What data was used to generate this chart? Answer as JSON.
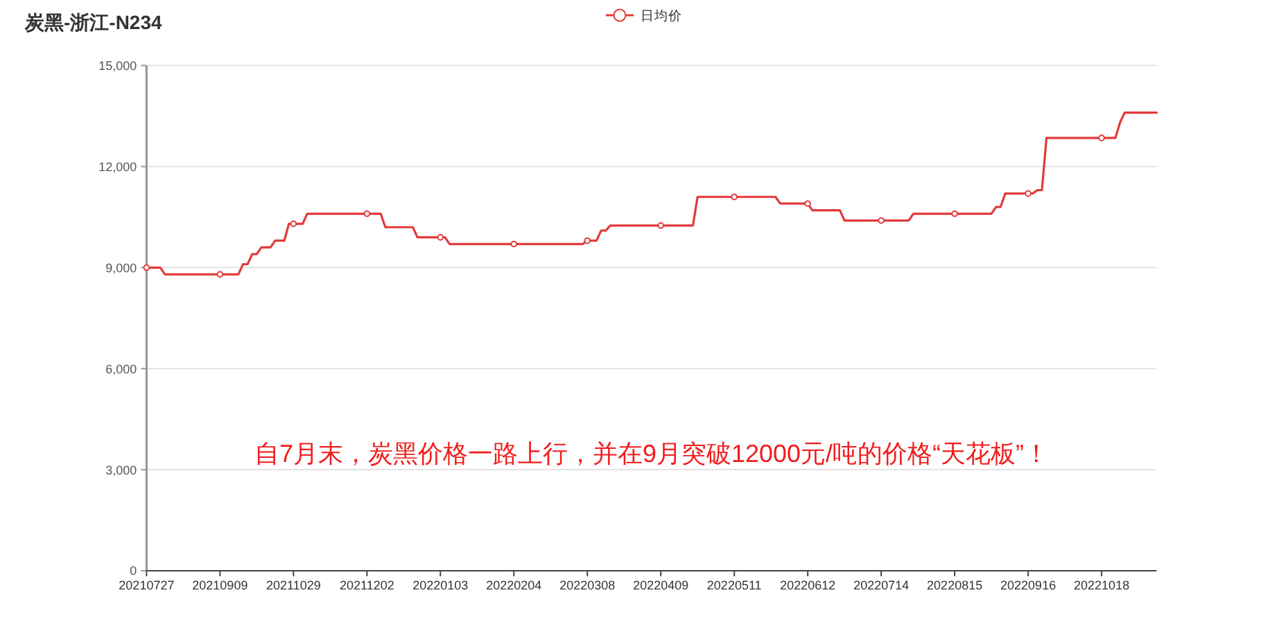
{
  "chart_data": {
    "type": "line",
    "title": "炭黑-浙江-N234",
    "annotations": [
      "自7月末，炭黑价格一路上行，并在9月突破12000元/吨的价格“天花板”！"
    ],
    "categories": [
      "20210727",
      null,
      null,
      null,
      null,
      null,
      null,
      null,
      null,
      null,
      null,
      null,
      null,
      null,
      null,
      null,
      "20210909",
      null,
      null,
      null,
      null,
      null,
      null,
      null,
      null,
      null,
      null,
      null,
      null,
      null,
      null,
      null,
      "20211029",
      null,
      null,
      null,
      null,
      null,
      null,
      null,
      null,
      null,
      null,
      null,
      null,
      null,
      null,
      null,
      "20211202",
      null,
      null,
      null,
      null,
      null,
      null,
      null,
      null,
      null,
      null,
      null,
      null,
      null,
      null,
      null,
      "20220103",
      null,
      null,
      null,
      null,
      null,
      null,
      null,
      null,
      null,
      null,
      null,
      null,
      null,
      null,
      null,
      "20220204",
      null,
      null,
      null,
      null,
      null,
      null,
      null,
      null,
      null,
      null,
      null,
      null,
      null,
      null,
      null,
      "20220308",
      null,
      null,
      null,
      null,
      null,
      null,
      null,
      null,
      null,
      null,
      null,
      null,
      null,
      null,
      null,
      "20220409",
      null,
      null,
      null,
      null,
      null,
      null,
      null,
      null,
      null,
      null,
      null,
      null,
      null,
      null,
      null,
      "20220511",
      null,
      null,
      null,
      null,
      null,
      null,
      null,
      null,
      null,
      null,
      null,
      null,
      null,
      null,
      null,
      "20220612",
      null,
      null,
      null,
      null,
      null,
      null,
      null,
      null,
      null,
      null,
      null,
      null,
      null,
      null,
      null,
      "20220714",
      null,
      null,
      null,
      null,
      null,
      null,
      null,
      null,
      null,
      null,
      null,
      null,
      null,
      null,
      null,
      "20220815",
      null,
      null,
      null,
      null,
      null,
      null,
      null,
      null,
      null,
      null,
      null,
      null,
      null,
      null,
      null,
      "20220916",
      null,
      null,
      null,
      null,
      null,
      null,
      null,
      null,
      null,
      null,
      null,
      null,
      null,
      null,
      null,
      "20221018",
      null,
      null,
      null,
      null,
      null,
      null,
      null,
      null,
      null,
      null,
      null,
      null
    ],
    "series": [
      {
        "name": "日均价",
        "color": "#e23a3a",
        "values": [
          9000,
          9000,
          9000,
          9000,
          8800,
          8800,
          8800,
          8800,
          8800,
          8800,
          8800,
          8800,
          8800,
          8800,
          8800,
          8800,
          8800,
          8800,
          8800,
          8800,
          8800,
          9100,
          9100,
          9400,
          9400,
          9600,
          9600,
          9600,
          9800,
          9800,
          9800,
          10300,
          10300,
          10300,
          10300,
          10600,
          10600,
          10600,
          10600,
          10600,
          10600,
          10600,
          10600,
          10600,
          10600,
          10600,
          10600,
          10600,
          10600,
          10600,
          10600,
          10600,
          10200,
          10200,
          10200,
          10200,
          10200,
          10200,
          10200,
          9900,
          9900,
          9900,
          9900,
          9900,
          9900,
          9900,
          9700,
          9700,
          9700,
          9700,
          9700,
          9700,
          9700,
          9700,
          9700,
          9700,
          9700,
          9700,
          9700,
          9700,
          9700,
          9700,
          9700,
          9700,
          9700,
          9700,
          9700,
          9700,
          9700,
          9700,
          9700,
          9700,
          9700,
          9700,
          9700,
          9700,
          9800,
          9800,
          9800,
          10100,
          10100,
          10250,
          10250,
          10250,
          10250,
          10250,
          10250,
          10250,
          10250,
          10250,
          10250,
          10250,
          10250,
          10250,
          10250,
          10250,
          10250,
          10250,
          10250,
          10250,
          11100,
          11100,
          11100,
          11100,
          11100,
          11100,
          11100,
          11100,
          11100,
          11100,
          11100,
          11100,
          11100,
          11100,
          11100,
          11100,
          11100,
          11100,
          10900,
          10900,
          10900,
          10900,
          10900,
          10900,
          10900,
          10700,
          10700,
          10700,
          10700,
          10700,
          10700,
          10700,
          10400,
          10400,
          10400,
          10400,
          10400,
          10400,
          10400,
          10400,
          10400,
          10400,
          10400,
          10400,
          10400,
          10400,
          10400,
          10600,
          10600,
          10600,
          10600,
          10600,
          10600,
          10600,
          10600,
          10600,
          10600,
          10600,
          10600,
          10600,
          10600,
          10600,
          10600,
          10600,
          10600,
          10800,
          10800,
          11200,
          11200,
          11200,
          11200,
          11200,
          11200,
          11200,
          11300,
          11300,
          12850,
          12850,
          12850,
          12850,
          12850,
          12850,
          12850,
          12850,
          12850,
          12850,
          12850,
          12850,
          12850,
          12850,
          12850,
          12850,
          13300,
          13600,
          13600,
          13600,
          13600,
          13600,
          13600,
          13600,
          13600
        ]
      },
      {
        "type": "scatter",
        "marker": "circle",
        "color": "#e23a3a",
        "x": [
          "20210727",
          "20210909",
          "20211029",
          "20211202",
          "20220103",
          "20220204",
          "20220308",
          "20220409",
          "20220511",
          "20220612",
          "20220714",
          "20220815",
          "20220916",
          "20221018"
        ],
        "values": [
          9000,
          8800,
          10300,
          10600,
          9900,
          9700,
          9800,
          10250,
          11100,
          10900,
          10400,
          10600,
          11200,
          12850
        ]
      }
    ],
    "ylim": [
      0,
      15000
    ],
    "yticks": [
      0,
      {
        "value": 3000,
        "label": "3,000"
      },
      {
        "value": 6000,
        "label": "6,000"
      },
      {
        "value": 9000,
        "label": "9,000"
      },
      {
        "value": 12000,
        "label": "12,000"
      },
      {
        "value": 15000,
        "label": "15,000"
      }
    ],
    "grid": "y",
    "legend": "top"
  }
}
